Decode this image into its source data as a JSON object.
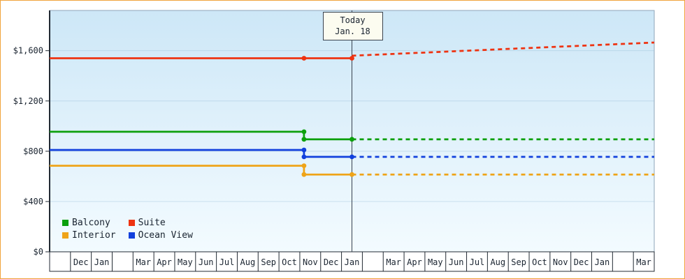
{
  "frame": {
    "border_color": "#f0a43c"
  },
  "plot": {
    "bg_top_color": "#cde7f7",
    "bg_bottom_color": "#f3fbff",
    "gridline_color": "rgba(140,180,210,0.35)",
    "axis_color": "#222a33",
    "plot_border_color": "#8fa6b8",
    "today_line_color": "#39424e"
  },
  "chart_data": {
    "type": "line",
    "title": "",
    "xlabel": "",
    "ylabel": "",
    "y_axis": {
      "range": [
        0,
        1920
      ],
      "ticks": [
        0,
        400,
        800,
        1200,
        1600
      ],
      "tick_labels": [
        "$0",
        "$400",
        "$800",
        "$1,200",
        "$1,600"
      ],
      "grid": true
    },
    "x_axis": {
      "unit": "month",
      "cell_labels": [
        "",
        "Dec",
        "Jan",
        "",
        "Mar",
        "Apr",
        "May",
        "Jun",
        "Jul",
        "Aug",
        "Sep",
        "Oct",
        "Nov",
        "Dec",
        "Jan",
        "",
        "Mar",
        "Apr",
        "May",
        "Jun",
        "Jul",
        "Aug",
        "Sep",
        "Oct",
        "Nov",
        "Dec",
        "Jan",
        "",
        "Mar"
      ]
    },
    "today": {
      "label_line1": "Today",
      "label_line2": "Jan. 18",
      "position_month": 14.5
    },
    "series": [
      {
        "name": "Balcony",
        "color": "#0ca00c",
        "solid": [
          [
            0,
            955
          ],
          [
            12.2,
            955
          ],
          [
            12.2,
            895
          ],
          [
            14.5,
            895
          ]
        ],
        "dashed": [
          [
            14.5,
            895
          ],
          [
            29,
            895
          ]
        ],
        "markers": [
          [
            12.2,
            955
          ],
          [
            12.2,
            895
          ],
          [
            14.5,
            895
          ]
        ]
      },
      {
        "name": "Suite",
        "color": "#ee3311",
        "solid": [
          [
            0,
            1540
          ],
          [
            14.5,
            1540
          ]
        ],
        "dashed": [
          [
            14.5,
            1560
          ],
          [
            29,
            1665
          ]
        ],
        "markers": [
          [
            12.2,
            1540
          ],
          [
            14.5,
            1540
          ]
        ]
      },
      {
        "name": "Interior",
        "color": "#efa418",
        "solid": [
          [
            0,
            685
          ],
          [
            12.2,
            685
          ],
          [
            12.2,
            615
          ],
          [
            14.5,
            615
          ]
        ],
        "dashed": [
          [
            14.5,
            615
          ],
          [
            29,
            615
          ]
        ],
        "markers": [
          [
            12.2,
            685
          ],
          [
            12.2,
            615
          ],
          [
            14.5,
            615
          ]
        ]
      },
      {
        "name": "Ocean View",
        "color": "#1140dd",
        "solid": [
          [
            0,
            810
          ],
          [
            12.2,
            810
          ],
          [
            12.2,
            755
          ],
          [
            14.5,
            755
          ]
        ],
        "dashed": [
          [
            14.5,
            755
          ],
          [
            29,
            755
          ]
        ],
        "markers": [
          [
            12.2,
            810
          ],
          [
            12.2,
            755
          ],
          [
            14.5,
            755
          ]
        ]
      }
    ],
    "legend": {
      "position": "bottom-left-inside",
      "rows": [
        [
          "Balcony",
          "Suite"
        ],
        [
          "Interior",
          "Ocean View"
        ]
      ]
    }
  }
}
